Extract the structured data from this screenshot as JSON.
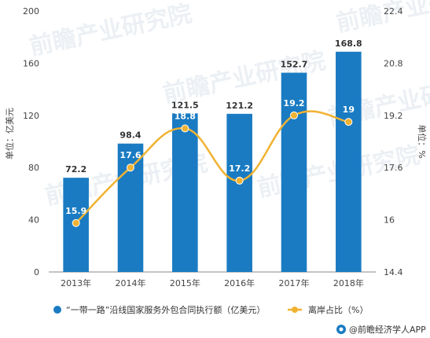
{
  "chart_data": {
    "type": "bar",
    "categories": [
      "2013年",
      "2014年",
      "2015年",
      "2016年",
      "2017年",
      "2018年"
    ],
    "series": [
      {
        "name": "“一带一路”沿线国家服务外包合同执行额（亿美元）",
        "type": "bar",
        "axis": "left",
        "color": "#1a7bc2",
        "values": [
          72.2,
          98.4,
          121.5,
          121.2,
          152.7,
          168.8
        ],
        "labels": [
          "72.2",
          "98.4",
          "121.5",
          "121.2",
          "152.7",
          "168.8"
        ]
      },
      {
        "name": "离岸占比（%）",
        "type": "line",
        "smooth": true,
        "axis": "right",
        "color": "#f0b232",
        "values": [
          15.9,
          17.6,
          18.8,
          17.2,
          19.2,
          19.0
        ],
        "labels": [
          "15.9",
          "17.6",
          "18.8",
          "17.2",
          "19.2",
          "19"
        ]
      }
    ],
    "ylabel_left": "单位：亿美元",
    "ylabel_right": "单位：%",
    "ylim_left": [
      0,
      200
    ],
    "yticks_left": [
      "0",
      "40",
      "80",
      "120",
      "160",
      "200"
    ],
    "ylim_right": [
      14.4,
      22.4
    ],
    "yticks_right": [
      "14.4",
      "16",
      "17.6",
      "19.2",
      "20.8",
      "22.4"
    ],
    "grid": false,
    "legend_position": "bottom"
  },
  "source": {
    "label": "@前瞻经济学人APP",
    "icon": "qianzhan-logo-icon"
  },
  "watermark": {
    "text": "前瞻产业研究院"
  }
}
